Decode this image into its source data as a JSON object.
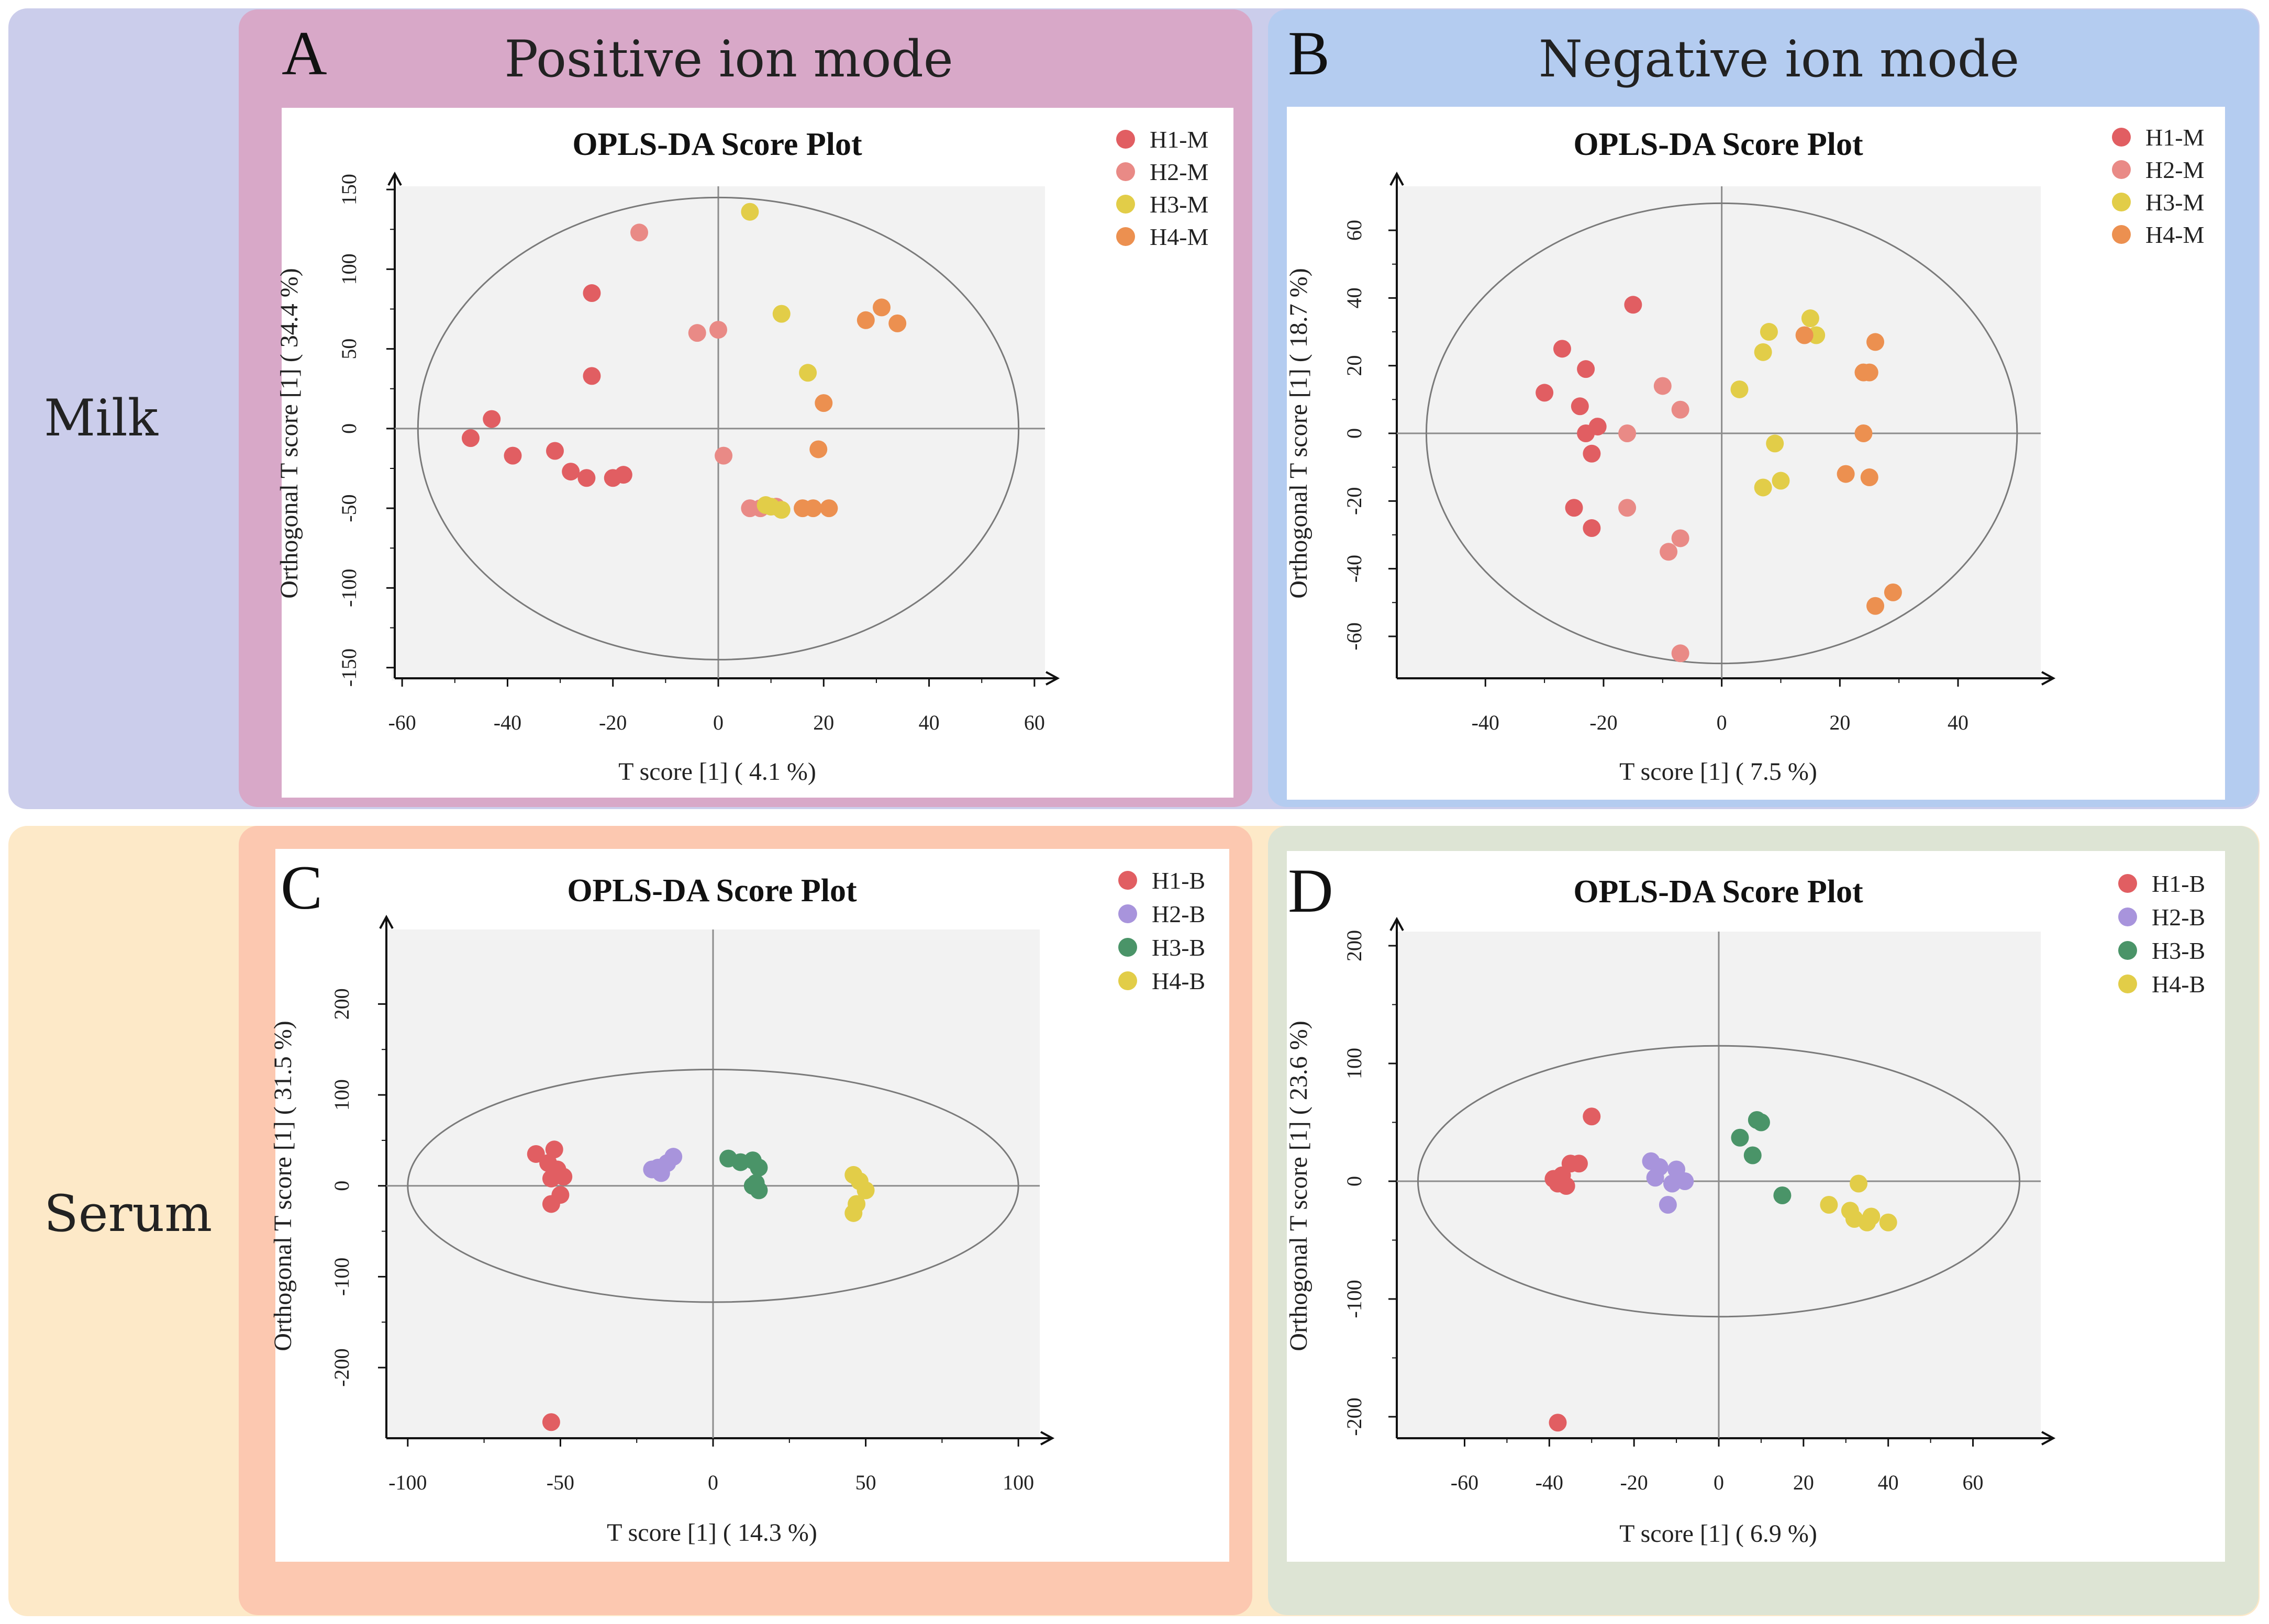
{
  "figure": {
    "row_labels": [
      "Milk",
      "Serum"
    ],
    "headers": {
      "A": "Positive ion mode",
      "B": "Negative ion mode"
    },
    "colors": {
      "milk_row_bg": "#cbcdeb",
      "serum_row_bg": "#fde9c8",
      "A_bg": "#d8a8c8",
      "B_bg": "#b4ccf0",
      "C_bg": "#fcc8b0",
      "D_bg": "#dde4d4",
      "plot_bg": "#f2f2f2"
    }
  },
  "chart_data": [
    {
      "panel": "A",
      "type": "scatter",
      "title": "OPLS-DA Score Plot",
      "xlabel": "T score [1] ( 4.1 %)",
      "ylabel": "Orthogonal T score [1] ( 34.4 %)",
      "xlim": [
        -62,
        62
      ],
      "ylim": [
        -158,
        152
      ],
      "xticks": [
        -60,
        -40,
        -20,
        0,
        20,
        40,
        60
      ],
      "yticks": [
        -150,
        -100,
        -50,
        0,
        50,
        100,
        150
      ],
      "ellipse": {
        "rx": 57,
        "ry": 145
      },
      "series": [
        {
          "name": "H1-M",
          "color": "#e15e62",
          "points": [
            [
              -47,
              -6
            ],
            [
              -43,
              6
            ],
            [
              -39,
              -17
            ],
            [
              -31,
              -14
            ],
            [
              -28,
              -27
            ],
            [
              -25,
              -31
            ],
            [
              -20,
              -31
            ],
            [
              -18,
              -29
            ],
            [
              -24,
              33
            ],
            [
              -24,
              85
            ]
          ]
        },
        {
          "name": "H2-M",
          "color": "#e98a86",
          "points": [
            [
              -15,
              123
            ],
            [
              -4,
              60
            ],
            [
              0,
              62
            ],
            [
              1,
              -17
            ],
            [
              6,
              -50
            ],
            [
              8,
              -50
            ],
            [
              11,
              -49
            ]
          ]
        },
        {
          "name": "H3-M",
          "color": "#e2cd48",
          "points": [
            [
              6,
              136
            ],
            [
              12,
              72
            ],
            [
              17,
              35
            ],
            [
              10,
              -49
            ],
            [
              12,
              -51
            ],
            [
              9,
              -48
            ]
          ]
        },
        {
          "name": "H4-M",
          "color": "#ec9050",
          "points": [
            [
              28,
              68
            ],
            [
              31,
              76
            ],
            [
              34,
              66
            ],
            [
              20,
              16
            ],
            [
              19,
              -13
            ],
            [
              16,
              -50
            ],
            [
              18,
              -50
            ],
            [
              21,
              -50
            ]
          ]
        }
      ]
    },
    {
      "panel": "B",
      "type": "scatter",
      "title": "OPLS-DA Score Plot",
      "xlabel": "T score [1] ( 7.5 %)",
      "ylabel": "Orthogonal T score [1] ( 18.7 %)",
      "xlim": [
        -55,
        54
      ],
      "ylim": [
        -73,
        73
      ],
      "xticks": [
        -40,
        -20,
        0,
        20,
        40
      ],
      "yticks": [
        -60,
        -40,
        -20,
        0,
        20,
        40,
        60
      ],
      "ellipse": {
        "rx": 50,
        "ry": 68
      },
      "series": [
        {
          "name": "H1-M",
          "color": "#e15e62",
          "points": [
            [
              -15,
              38
            ],
            [
              -27,
              25
            ],
            [
              -23,
              19
            ],
            [
              -30,
              12
            ],
            [
              -24,
              8
            ],
            [
              -21,
              2
            ],
            [
              -23,
              0
            ],
            [
              -22,
              -6
            ],
            [
              -25,
              -22
            ],
            [
              -22,
              -28
            ]
          ]
        },
        {
          "name": "H2-M",
          "color": "#e98a86",
          "points": [
            [
              -10,
              14
            ],
            [
              -7,
              7
            ],
            [
              -16,
              0
            ],
            [
              -16,
              -22
            ],
            [
              -7,
              -31
            ],
            [
              -9,
              -35
            ],
            [
              -7,
              -65
            ]
          ]
        },
        {
          "name": "H3-M",
          "color": "#e2cd48",
          "points": [
            [
              15,
              34
            ],
            [
              8,
              30
            ],
            [
              16,
              29
            ],
            [
              7,
              24
            ],
            [
              3,
              13
            ],
            [
              9,
              -3
            ],
            [
              10,
              -14
            ],
            [
              7,
              -16
            ]
          ]
        },
        {
          "name": "H4-M",
          "color": "#ec9050",
          "points": [
            [
              14,
              29
            ],
            [
              24,
              18
            ],
            [
              25,
              18
            ],
            [
              26,
              27
            ],
            [
              24,
              0
            ],
            [
              21,
              -12
            ],
            [
              25,
              -13
            ],
            [
              29,
              -47
            ],
            [
              26,
              -51
            ]
          ]
        }
      ]
    },
    {
      "panel": "C",
      "type": "scatter",
      "title": "OPLS-DA Score Plot",
      "xlabel": "T score [1] ( 14.3 %)",
      "ylabel": "Orthogonal T score [1] ( 31.5 %)",
      "xlim": [
        -107,
        107
      ],
      "ylim": [
        -280,
        282
      ],
      "xticks": [
        -100,
        -50,
        0,
        50,
        100
      ],
      "yticks": [
        -200,
        -100,
        0,
        100,
        200
      ],
      "ellipse": {
        "rx": 100,
        "ry": 128
      },
      "series": [
        {
          "name": "H1-B",
          "color": "#e15e62",
          "points": [
            [
              -58,
              35
            ],
            [
              -52,
              40
            ],
            [
              -54,
              25
            ],
            [
              -51,
              18
            ],
            [
              -49,
              10
            ],
            [
              -53,
              8
            ],
            [
              -50,
              -10
            ],
            [
              -53,
              -20
            ],
            [
              -53,
              -260
            ]
          ]
        },
        {
          "name": "H2-B",
          "color": "#a894dc",
          "points": [
            [
              -20,
              18
            ],
            [
              -17,
              14
            ],
            [
              -15,
              25
            ],
            [
              -13,
              32
            ],
            [
              -18,
              20
            ]
          ]
        },
        {
          "name": "H3-B",
          "color": "#4a9468",
          "points": [
            [
              5,
              30
            ],
            [
              9,
              26
            ],
            [
              13,
              28
            ],
            [
              15,
              20
            ],
            [
              13,
              0
            ],
            [
              15,
              -5
            ],
            [
              14,
              3
            ]
          ]
        },
        {
          "name": "H4-B",
          "color": "#e2cd48",
          "points": [
            [
              46,
              12
            ],
            [
              48,
              5
            ],
            [
              50,
              -5
            ],
            [
              47,
              -20
            ],
            [
              46,
              -30
            ]
          ]
        }
      ]
    },
    {
      "panel": "D",
      "type": "scatter",
      "title": "OPLS-DA Score Plot",
      "xlabel": "T score [1] ( 6.9 %)",
      "ylabel": "Orthogonal T score [1] ( 23.6 %)",
      "xlim": [
        -76,
        76
      ],
      "ylim": [
        -220,
        212
      ],
      "xticks": [
        -60,
        -40,
        -20,
        0,
        20,
        40,
        60
      ],
      "yticks": [
        -200,
        -100,
        0,
        100,
        200
      ],
      "ellipse": {
        "rx": 71,
        "ry": 115
      },
      "series": [
        {
          "name": "H1-B",
          "color": "#e15e62",
          "points": [
            [
              -30,
              55
            ],
            [
              -35,
              15
            ],
            [
              -37,
              5
            ],
            [
              -39,
              2
            ],
            [
              -38,
              -2
            ],
            [
              -36,
              -4
            ],
            [
              -33,
              15
            ],
            [
              -38,
              -205
            ]
          ]
        },
        {
          "name": "H2-B",
          "color": "#a894dc",
          "points": [
            [
              -16,
              17
            ],
            [
              -14,
              12
            ],
            [
              -10,
              10
            ],
            [
              -15,
              3
            ],
            [
              -11,
              -2
            ],
            [
              -8,
              0
            ],
            [
              -12,
              -20
            ]
          ]
        },
        {
          "name": "H3-B",
          "color": "#4a9468",
          "points": [
            [
              9,
              52
            ],
            [
              10,
              50
            ],
            [
              5,
              37
            ],
            [
              8,
              22
            ],
            [
              15,
              -12
            ]
          ]
        },
        {
          "name": "H4-B",
          "color": "#e2cd48",
          "points": [
            [
              33,
              -2
            ],
            [
              26,
              -20
            ],
            [
              31,
              -25
            ],
            [
              32,
              -32
            ],
            [
              35,
              -35
            ],
            [
              36,
              -30
            ],
            [
              40,
              -35
            ]
          ]
        }
      ]
    }
  ]
}
